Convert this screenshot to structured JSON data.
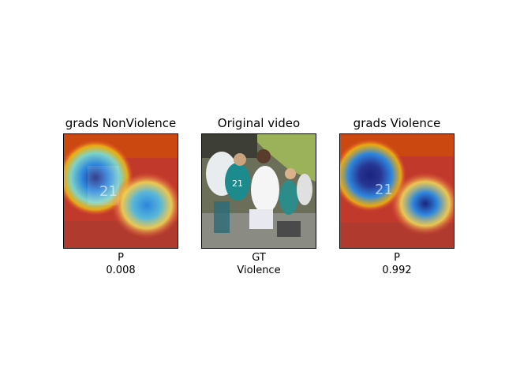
{
  "panels": [
    {
      "title": "grads NonViolence",
      "caption_top": "P",
      "caption_bottom": "0.008"
    },
    {
      "title": "Original video",
      "caption_top": "GT",
      "caption_bottom": "Violence"
    },
    {
      "title": "grads Violence",
      "caption_top": "P",
      "caption_bottom": "0.992"
    }
  ],
  "colors": {
    "heat_hot": "#c0392b",
    "heat_warm": "#f1c40f",
    "heat_cool": "#2e86de",
    "heat_cold": "#1a237e",
    "stadium_field": "#9bb15a",
    "jersey_teal": "#1d8a8e"
  }
}
